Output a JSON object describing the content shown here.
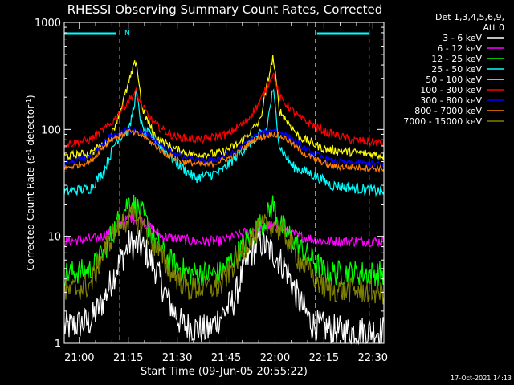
{
  "chart_data": {
    "type": "line",
    "title": "RHESSI Observing Summary Count Rates, Corrected",
    "ylabel_main": "Corrected Count Rate (s",
    "ylabel_sup1": "-1",
    "ylabel_mid": " detector",
    "ylabel_sup2": "-1",
    "ylabel_end": ")",
    "xlabel": "Start Time (09-Jun-05 20:55:22)",
    "yscale": "log",
    "ylim": [
      1,
      1000
    ],
    "xlim_min": [
      0,
      98
    ],
    "ytick_labels": [
      "1",
      "10",
      "100",
      "1000"
    ],
    "xtick_labels": [
      "21:00",
      "21:15",
      "21:30",
      "21:45",
      "22:00",
      "22:15",
      "22:30"
    ],
    "xtick_minutes": [
      4.63,
      19.63,
      34.63,
      49.63,
      64.63,
      79.63,
      94.63
    ],
    "legend_header": [
      "Det 1,3,4,5,6,9,",
      "Att 0"
    ],
    "legend_position": "right",
    "series": [
      {
        "name": "3 - 6 keV",
        "color": "#ffffff",
        "points": [
          [
            0,
            1.4
          ],
          [
            8,
            1.6
          ],
          [
            12,
            2.5
          ],
          [
            16,
            5
          ],
          [
            20,
            8.5
          ],
          [
            24,
            8
          ],
          [
            28,
            5
          ],
          [
            32,
            2.5
          ],
          [
            36,
            1.5
          ],
          [
            44,
            1.3
          ],
          [
            52,
            2.5
          ],
          [
            56,
            6
          ],
          [
            60,
            9
          ],
          [
            64,
            7
          ],
          [
            68,
            5
          ],
          [
            72,
            2.5
          ],
          [
            76,
            1.5
          ],
          [
            84,
            1.3
          ],
          [
            98,
            1.3
          ]
        ],
        "noise": 0.15
      },
      {
        "name": "6 - 12 keV",
        "color": "#ff00ff",
        "points": [
          [
            0,
            9
          ],
          [
            10,
            9.5
          ],
          [
            16,
            12
          ],
          [
            20,
            15
          ],
          [
            24,
            14
          ],
          [
            30,
            10
          ],
          [
            40,
            9
          ],
          [
            48,
            9
          ],
          [
            56,
            11
          ],
          [
            62,
            13
          ],
          [
            66,
            12
          ],
          [
            72,
            10
          ],
          [
            80,
            9
          ],
          [
            98,
            9
          ]
        ],
        "noise": 0.05
      },
      {
        "name": "12 - 25 keV",
        "color": "#00ff00",
        "points": [
          [
            0,
            4.5
          ],
          [
            8,
            4.8
          ],
          [
            12,
            7
          ],
          [
            16,
            13
          ],
          [
            20,
            22
          ],
          [
            24,
            16
          ],
          [
            28,
            9
          ],
          [
            32,
            6
          ],
          [
            38,
            4.5
          ],
          [
            48,
            4.5
          ],
          [
            56,
            9
          ],
          [
            62,
            15
          ],
          [
            64,
            20
          ],
          [
            66,
            13
          ],
          [
            72,
            8
          ],
          [
            80,
            4.6
          ],
          [
            98,
            4.5
          ]
        ],
        "noise": 0.12
      },
      {
        "name": "25 - 50 keV",
        "color": "#00ffff",
        "points": [
          [
            0,
            26
          ],
          [
            8,
            28
          ],
          [
            12,
            40
          ],
          [
            16,
            80
          ],
          [
            20,
            100
          ],
          [
            22,
            220
          ],
          [
            24,
            100
          ],
          [
            28,
            80
          ],
          [
            34,
            50
          ],
          [
            40,
            35
          ],
          [
            48,
            40
          ],
          [
            56,
            70
          ],
          [
            62,
            100
          ],
          [
            64,
            240
          ],
          [
            66,
            70
          ],
          [
            70,
            45
          ],
          [
            76,
            38
          ],
          [
            82,
            30
          ],
          [
            98,
            26
          ]
        ],
        "noise": 0.05
      },
      {
        "name": "50 - 100 keV",
        "color": "#ffff00",
        "points": [
          [
            0,
            56
          ],
          [
            8,
            60
          ],
          [
            14,
            80
          ],
          [
            18,
            180
          ],
          [
            22,
            450
          ],
          [
            24,
            150
          ],
          [
            28,
            85
          ],
          [
            34,
            65
          ],
          [
            40,
            58
          ],
          [
            48,
            60
          ],
          [
            54,
            75
          ],
          [
            60,
            120
          ],
          [
            64,
            480
          ],
          [
            66,
            150
          ],
          [
            72,
            85
          ],
          [
            80,
            65
          ],
          [
            98,
            57
          ]
        ],
        "noise": 0.04
      },
      {
        "name": "100 - 300 keV",
        "color": "#ff0000",
        "points": [
          [
            0,
            72
          ],
          [
            8,
            80
          ],
          [
            14,
            110
          ],
          [
            18,
            160
          ],
          [
            22,
            225
          ],
          [
            24,
            160
          ],
          [
            28,
            110
          ],
          [
            34,
            85
          ],
          [
            42,
            80
          ],
          [
            50,
            90
          ],
          [
            56,
            120
          ],
          [
            60,
            180
          ],
          [
            64,
            340
          ],
          [
            66,
            200
          ],
          [
            72,
            130
          ],
          [
            80,
            95
          ],
          [
            88,
            80
          ],
          [
            98,
            74
          ]
        ],
        "noise": 0.04
      },
      {
        "name": "300 - 800 keV",
        "color": "#0000ff",
        "points": [
          [
            0,
            48
          ],
          [
            8,
            55
          ],
          [
            14,
            85
          ],
          [
            20,
            100
          ],
          [
            24,
            95
          ],
          [
            30,
            70
          ],
          [
            36,
            55
          ],
          [
            44,
            50
          ],
          [
            52,
            60
          ],
          [
            58,
            85
          ],
          [
            64,
            100
          ],
          [
            68,
            90
          ],
          [
            74,
            65
          ],
          [
            82,
            50
          ],
          [
            98,
            47
          ]
        ],
        "noise": 0.03
      },
      {
        "name": "800 - 7000 keV",
        "color": "#ff8000",
        "points": [
          [
            0,
            43
          ],
          [
            8,
            50
          ],
          [
            14,
            80
          ],
          [
            20,
            95
          ],
          [
            24,
            88
          ],
          [
            30,
            62
          ],
          [
            36,
            50
          ],
          [
            44,
            46
          ],
          [
            52,
            56
          ],
          [
            58,
            80
          ],
          [
            64,
            92
          ],
          [
            68,
            82
          ],
          [
            74,
            58
          ],
          [
            82,
            45
          ],
          [
            98,
            43
          ]
        ],
        "noise": 0.03
      },
      {
        "name": "7000 - 15000 keV",
        "color": "#808000",
        "points": [
          [
            0,
            3
          ],
          [
            8,
            3.5
          ],
          [
            12,
            7
          ],
          [
            16,
            12
          ],
          [
            20,
            15
          ],
          [
            24,
            13
          ],
          [
            28,
            8
          ],
          [
            32,
            5
          ],
          [
            38,
            3.2
          ],
          [
            48,
            3.4
          ],
          [
            54,
            7
          ],
          [
            60,
            12
          ],
          [
            64,
            13
          ],
          [
            68,
            10
          ],
          [
            72,
            6
          ],
          [
            80,
            3.2
          ],
          [
            98,
            3
          ]
        ],
        "noise": 0.12
      }
    ],
    "annotations": [
      {
        "type": "vline",
        "x_min": 17,
        "label": "N"
      },
      {
        "type": "vline",
        "x_min": 77,
        "label": ""
      },
      {
        "type": "vline",
        "x_min": 93.5,
        "label": ""
      },
      {
        "type": "bar_top",
        "x_from": 0,
        "x_to": 16,
        "label": "N"
      },
      {
        "type": "bar_top",
        "x_from": 77.5,
        "x_to": 93.5,
        "label": ""
      }
    ],
    "night_label": "N",
    "footer_date": "17-Oct-2021 14:13"
  }
}
